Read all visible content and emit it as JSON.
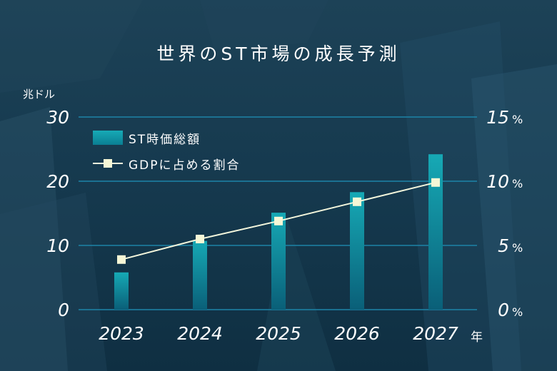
{
  "chart_data": {
    "type": "bar",
    "title": "世界のST市場の成長予測",
    "categories": [
      "2023",
      "2024",
      "2025",
      "2026",
      "2027"
    ],
    "x_unit": "年",
    "y_left": {
      "unit": "兆ドル",
      "ylim": [
        0,
        30
      ],
      "ticks": [
        "0",
        "10",
        "20",
        "30"
      ]
    },
    "y_right": {
      "unit": "%",
      "ylim": [
        0,
        15
      ],
      "ticks": [
        "0",
        "5",
        "10",
        "15"
      ]
    },
    "series": [
      {
        "name": "ST時価総額",
        "type": "bar",
        "axis": "left",
        "values": [
          5.8,
          10.7,
          15.1,
          18.3,
          24.2
        ]
      },
      {
        "name": "GDPに占める割合",
        "type": "line",
        "axis": "right",
        "values": [
          3.9,
          5.5,
          6.9,
          8.4,
          9.9
        ]
      }
    ],
    "legend_position": "top-left",
    "grid": true
  },
  "colors": {
    "bar_top": "#16a9b5",
    "bar_bottom": "#0a5f78",
    "line": "#f3f6dc",
    "marker": "#f6f7d6",
    "grid": "#1d84a8",
    "text": "#ffffff"
  }
}
